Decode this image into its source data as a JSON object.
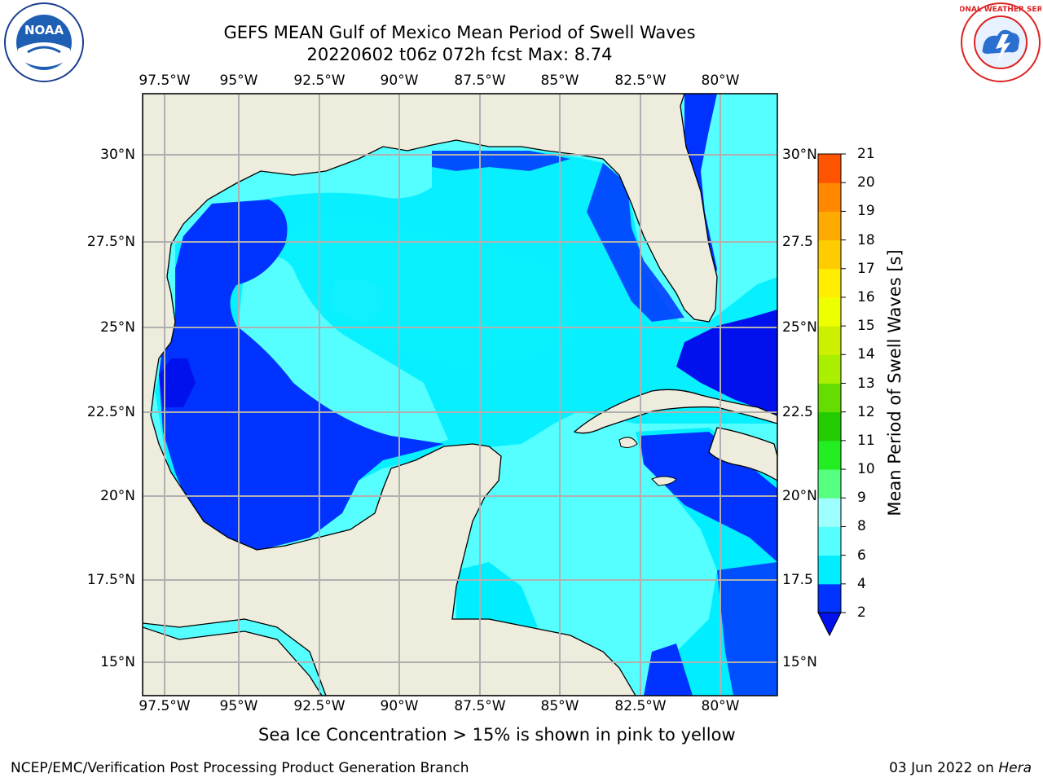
{
  "header": {
    "title_line1": "GEFS MEAN Gulf of Mexico Mean Period of Swell Waves",
    "title_line2": "20220602 t06z 072h fcst   Max: 8.74"
  },
  "map": {
    "lon_ticks": [
      "97.5°W",
      "95°W",
      "92.5°W",
      "90°W",
      "87.5°W",
      "85°W",
      "82.5°W",
      "80°W"
    ],
    "lat_ticks_left": [
      "30°N",
      "27.5°N",
      "25°N",
      "22.5°N",
      "20°N",
      "17.5°N",
      "15°N"
    ],
    "lat_ticks_right": [
      "30°N",
      "27.5",
      "25°N",
      "22.5",
      "20°N",
      "17.5",
      "15°N"
    ],
    "land_color": "#eeecdc",
    "grid_color": "#b0b0b0"
  },
  "colorbar": {
    "title": "Mean Period of Swell Waves [s]",
    "tick_labels": [
      "2",
      "4",
      "6",
      "8",
      "9",
      "10",
      "11",
      "12",
      "13",
      "14",
      "15",
      "16",
      "17",
      "18",
      "19",
      "20",
      "21"
    ],
    "colors": [
      "#0033ff",
      "#00eeff",
      "#55ffff",
      "#9effff",
      "#55ff80",
      "#22ee22",
      "#22cc00",
      "#66dd00",
      "#aaee00",
      "#ccf000",
      "#eeff00",
      "#ffee00",
      "#ffcc00",
      "#ffaa00",
      "#ff8800",
      "#ff5500",
      "#ff2200",
      "#ff0000"
    ],
    "under_color": "#0011ee"
  },
  "footer": {
    "ice_note": "Sea Ice Concentration > 15% is shown in pink to yellow",
    "branch": "NCEP/EMC/Verification Post Processing Product Generation Branch",
    "date_prefix": "03 Jun 2022 on ",
    "machine": "Hera"
  },
  "logos": {
    "noaa_text": "NOAA",
    "nws_text": "NATIONAL WEATHER SERVICE"
  }
}
